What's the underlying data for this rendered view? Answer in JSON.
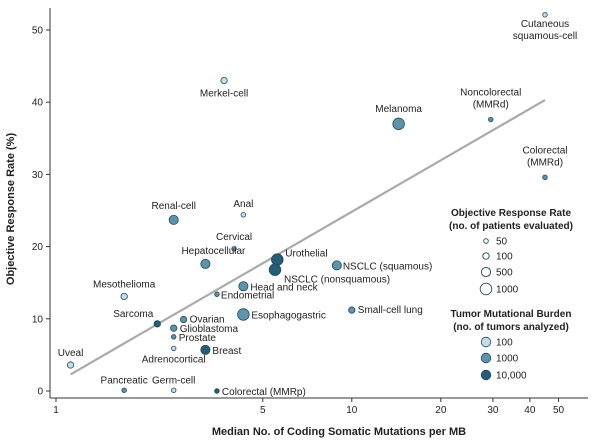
{
  "chart_data": {
    "type": "scatter",
    "xlabel": "Median No. of Coding Somatic Mutations per MB",
    "ylabel": "Objective Response Rate (%)",
    "x_scale": "log",
    "xlim": [
      0.9,
      55
    ],
    "ylim": [
      -1,
      53
    ],
    "x_ticks": [
      1,
      5,
      10,
      20,
      30,
      40,
      50
    ],
    "y_ticks": [
      0,
      10,
      20,
      30,
      40,
      50
    ],
    "grid": false,
    "trend_line": {
      "x": [
        1.12,
        45
      ],
      "y": [
        2.3,
        40.3
      ],
      "color": "#aaaaaa"
    },
    "points": [
      {
        "label": "Cutaneous\nsquamous-cell",
        "x": 45,
        "y": 52.1,
        "size": "50",
        "burden": "100"
      },
      {
        "label": "Merkel-cell",
        "x": 3.7,
        "y": 43,
        "size": "100",
        "burden": "100"
      },
      {
        "label": "Melanoma",
        "x": 14.4,
        "y": 37,
        "size": "1000",
        "burden": "1000"
      },
      {
        "label": "Noncolorectal\n(MMRd)",
        "x": 29.5,
        "y": 37.6,
        "size": "50",
        "burden": "1000"
      },
      {
        "label": "Colorectal\n(MMRd)",
        "x": 45,
        "y": 29.6,
        "size": "50",
        "burden": "1000"
      },
      {
        "label": "Renal-cell",
        "x": 2.5,
        "y": 23.7,
        "size": "500",
        "burden": "1000"
      },
      {
        "label": "Anal",
        "x": 4.3,
        "y": 24.4,
        "size": "50",
        "burden": "100"
      },
      {
        "label": "Cervical",
        "x": 4.0,
        "y": 19.7,
        "size": "50",
        "burden": "1000"
      },
      {
        "label": "Hepatocellular",
        "x": 3.2,
        "y": 17.6,
        "size": "500",
        "burden": "1000"
      },
      {
        "label": "Urothelial",
        "x": 5.6,
        "y": 18.2,
        "size": "1000",
        "burden": "10,000"
      },
      {
        "label": "NSCLC (squamous)",
        "x": 8.9,
        "y": 17.4,
        "size": "500",
        "burden": "1000"
      },
      {
        "label": "NSCLC (nonsquamous)",
        "x": 5.5,
        "y": 16.8,
        "size": "1000",
        "burden": "10,000"
      },
      {
        "label": "Head and neck",
        "x": 4.3,
        "y": 14.5,
        "size": "500",
        "burden": "1000"
      },
      {
        "label": "Endometrial",
        "x": 3.5,
        "y": 13.4,
        "size": "50",
        "burden": "1000"
      },
      {
        "label": "Mesothelioma",
        "x": 1.7,
        "y": 13.1,
        "size": "100",
        "burden": "100"
      },
      {
        "label": "Small-cell lung",
        "x": 10.0,
        "y": 11.2,
        "size": "100",
        "burden": "1000"
      },
      {
        "label": "Esophagogastric",
        "x": 4.3,
        "y": 10.6,
        "size": "1000",
        "burden": "1000"
      },
      {
        "label": "Sarcoma",
        "x": 2.2,
        "y": 9.3,
        "size": "100",
        "burden": "10,000"
      },
      {
        "label": "Ovarian",
        "x": 2.7,
        "y": 9.9,
        "size": "100",
        "burden": "1000"
      },
      {
        "label": "Glioblastoma",
        "x": 2.5,
        "y": 8.7,
        "size": "100",
        "burden": "1000"
      },
      {
        "label": "Prostate",
        "x": 2.5,
        "y": 7.5,
        "size": "50",
        "burden": "1000"
      },
      {
        "label": "Adrenocortical",
        "x": 2.5,
        "y": 5.9,
        "size": "50",
        "burden": "100"
      },
      {
        "label": "Breast",
        "x": 3.2,
        "y": 5.7,
        "size": "500",
        "burden": "10,000"
      },
      {
        "label": "Uveal",
        "x": 1.12,
        "y": 3.6,
        "size": "100",
        "burden": "100"
      },
      {
        "label": "Pancreatic",
        "x": 1.7,
        "y": 0.1,
        "size": "50",
        "burden": "1000"
      },
      {
        "label": "Germ-cell",
        "x": 2.5,
        "y": 0.1,
        "size": "50",
        "burden": "100"
      },
      {
        "label": "Colorectal (MMRp)",
        "x": 3.5,
        "y": 0,
        "size": "50",
        "burden": "10,000"
      }
    ],
    "legend": {
      "placement": "right",
      "size_title": [
        "Objective Response Rate",
        "(no. of patients evaluated)"
      ],
      "size_entries": [
        "50",
        "100",
        "500",
        "1000"
      ],
      "burden_title": [
        "Tumor Mutational Burden",
        "(no. of tumors analyzed)"
      ],
      "burden_entries": [
        "100",
        "1000",
        "10,000"
      ]
    },
    "colors": {
      "100": "#c5dbe5",
      "1000": "#5e93ab",
      "10,000": "#245d75",
      "stroke": "#1f4a5c",
      "trend": "#aaaaaa"
    }
  }
}
